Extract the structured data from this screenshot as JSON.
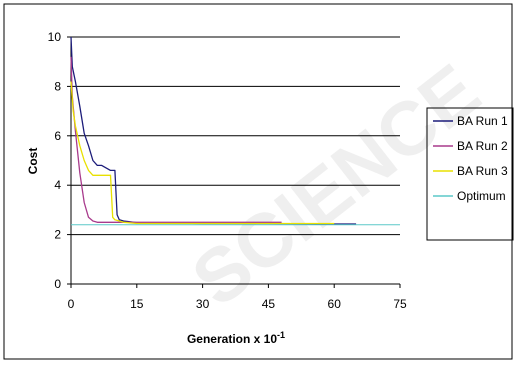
{
  "chart_data": {
    "type": "line",
    "title": "",
    "xlabel": "Generation x 10",
    "xlabel_superscript": "-1",
    "ylabel": "Cost",
    "xlim": [
      0,
      75
    ],
    "ylim": [
      0,
      10
    ],
    "x_ticks": [
      "0",
      "15",
      "30",
      "45",
      "60",
      "75"
    ],
    "y_ticks": [
      "0",
      "2",
      "4",
      "6",
      "8",
      "10"
    ],
    "grid": "horizontal",
    "legend_position": "right",
    "series": [
      {
        "name": "BA Run 1",
        "color": "#1c1c7a",
        "x": [
          0,
          0.3,
          1,
          2,
          3,
          4,
          5,
          6,
          7,
          8,
          9,
          10,
          10.5,
          11,
          12,
          15,
          30,
          45,
          60,
          65
        ],
        "y": [
          10,
          8.8,
          8.2,
          7.2,
          6.1,
          5.6,
          5.0,
          4.8,
          4.8,
          4.7,
          4.6,
          4.6,
          2.8,
          2.6,
          2.55,
          2.48,
          2.45,
          2.45,
          2.43,
          2.43
        ]
      },
      {
        "name": "BA Run 2",
        "color": "#a83a8c",
        "x": [
          0,
          0.3,
          1,
          2,
          3,
          4,
          5,
          6,
          8,
          10,
          15,
          30,
          45,
          48
        ],
        "y": [
          9.2,
          7.6,
          6.2,
          4.5,
          3.3,
          2.7,
          2.55,
          2.5,
          2.5,
          2.5,
          2.5,
          2.5,
          2.5,
          2.5
        ]
      },
      {
        "name": "BA Run 3",
        "color": "#e8e000",
        "x": [
          0,
          0.5,
          1,
          2,
          3,
          4,
          5,
          6,
          7,
          8,
          9,
          9.5,
          10,
          11,
          12,
          15,
          30,
          45,
          60
        ],
        "y": [
          8.2,
          7.0,
          6.4,
          5.6,
          5.0,
          4.6,
          4.4,
          4.4,
          4.4,
          4.4,
          4.4,
          2.7,
          2.6,
          2.55,
          2.5,
          2.45,
          2.45,
          2.45,
          2.45
        ]
      },
      {
        "name": "Optimum",
        "color": "#5bc8c8",
        "x": [
          0,
          75
        ],
        "y": [
          2.4,
          2.4
        ]
      }
    ]
  },
  "watermark": {
    "text": "SCIENCE"
  }
}
